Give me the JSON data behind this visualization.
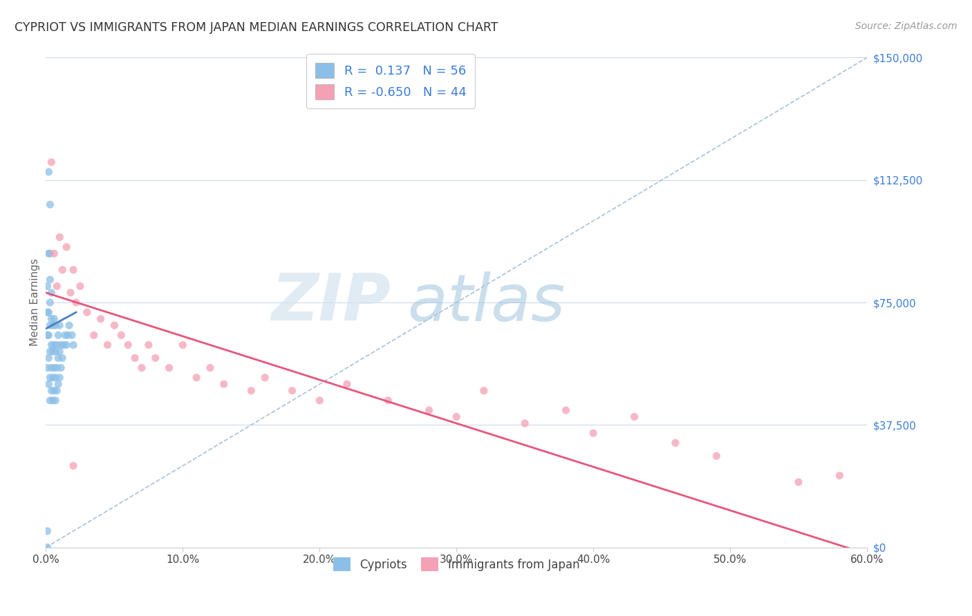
{
  "title": "CYPRIOT VS IMMIGRANTS FROM JAPAN MEDIAN EARNINGS CORRELATION CHART",
  "source": "Source: ZipAtlas.com",
  "xlabel_ticks": [
    "0.0%",
    "10.0%",
    "20.0%",
    "30.0%",
    "40.0%",
    "50.0%",
    "60.0%"
  ],
  "ylabel_ticks": [
    "$150,000",
    "$112,500",
    "$75,000",
    "$37,500",
    "$0"
  ],
  "ylabel_values": [
    150000,
    112500,
    75000,
    37500,
    0
  ],
  "xlabel_values": [
    0.0,
    0.1,
    0.2,
    0.3,
    0.4,
    0.5,
    0.6
  ],
  "xmin": 0.0,
  "xmax": 0.6,
  "ymin": 0,
  "ymax": 150000,
  "legend_label1": "Cypriots",
  "legend_label2": "Immigrants from Japan",
  "R1": 0.137,
  "N1": 56,
  "R2": -0.65,
  "N2": 44,
  "color1": "#8bbfe8",
  "color2": "#f4a0b5",
  "line_color1": "#4a7fc1",
  "line_color2": "#e8547a",
  "diag_color": "#a8c0d8",
  "watermark_zip": "ZIP",
  "watermark_atlas": "atlas",
  "scatter1_x": [
    0.001,
    0.001,
    0.001,
    0.001,
    0.001,
    0.002,
    0.002,
    0.002,
    0.002,
    0.002,
    0.003,
    0.003,
    0.003,
    0.003,
    0.003,
    0.003,
    0.003,
    0.004,
    0.004,
    0.004,
    0.004,
    0.004,
    0.005,
    0.005,
    0.005,
    0.005,
    0.006,
    0.006,
    0.006,
    0.006,
    0.007,
    0.007,
    0.007,
    0.007,
    0.008,
    0.008,
    0.008,
    0.009,
    0.009,
    0.009,
    0.01,
    0.01,
    0.01,
    0.011,
    0.011,
    0.012,
    0.013,
    0.014,
    0.015,
    0.016,
    0.017,
    0.019,
    0.02,
    0.001,
    0.002,
    0.003
  ],
  "scatter1_y": [
    5000,
    55000,
    65000,
    72000,
    80000,
    50000,
    58000,
    65000,
    72000,
    90000,
    45000,
    52000,
    60000,
    68000,
    75000,
    82000,
    90000,
    48000,
    55000,
    62000,
    70000,
    78000,
    45000,
    52000,
    60000,
    68000,
    48000,
    55000,
    62000,
    70000,
    45000,
    52000,
    60000,
    68000,
    48000,
    55000,
    62000,
    50000,
    58000,
    65000,
    52000,
    60000,
    68000,
    55000,
    62000,
    58000,
    62000,
    65000,
    62000,
    65000,
    68000,
    65000,
    62000,
    0,
    115000,
    105000
  ],
  "scatter2_x": [
    0.004,
    0.006,
    0.008,
    0.01,
    0.012,
    0.015,
    0.018,
    0.02,
    0.022,
    0.025,
    0.03,
    0.035,
    0.04,
    0.045,
    0.05,
    0.055,
    0.06,
    0.065,
    0.07,
    0.075,
    0.08,
    0.09,
    0.1,
    0.11,
    0.12,
    0.13,
    0.15,
    0.16,
    0.18,
    0.2,
    0.22,
    0.25,
    0.28,
    0.3,
    0.32,
    0.35,
    0.38,
    0.4,
    0.43,
    0.46,
    0.49,
    0.55,
    0.58,
    0.02
  ],
  "scatter2_y": [
    118000,
    90000,
    80000,
    95000,
    85000,
    92000,
    78000,
    85000,
    75000,
    80000,
    72000,
    65000,
    70000,
    62000,
    68000,
    65000,
    62000,
    58000,
    55000,
    62000,
    58000,
    55000,
    62000,
    52000,
    55000,
    50000,
    48000,
    52000,
    48000,
    45000,
    50000,
    45000,
    42000,
    40000,
    48000,
    38000,
    42000,
    35000,
    40000,
    32000,
    28000,
    20000,
    22000,
    25000
  ]
}
